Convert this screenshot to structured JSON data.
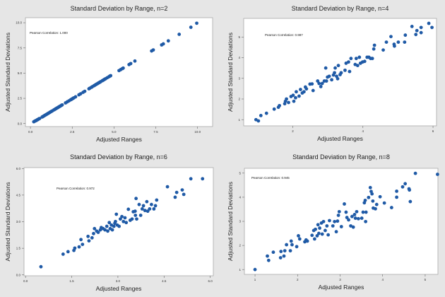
{
  "chart_data": [
    {
      "type": "scatter",
      "title": "Standard Deviation by Range, n=2",
      "xlabel": "Adjusted Ranges",
      "ylabel": "Adjusted Standard Deviations",
      "annotation": "Pearson Correlation: 1.000",
      "xlim": [
        -0.3,
        10.9
      ],
      "ylim": [
        -0.3,
        10.5
      ],
      "xticks": [
        0.0,
        2.5,
        5.0,
        7.5,
        10.0
      ],
      "xtick_labels": [
        "0.0",
        "2.5",
        "5.0",
        "7.5",
        "10.0"
      ],
      "yticks": [
        0.0,
        2.5,
        5.0,
        7.5,
        10.0
      ],
      "ytick_labels": [
        "0.0",
        "2.5",
        "5.0",
        "7.5",
        "10.0"
      ],
      "grid": false,
      "marker_color": "#1f5aa6",
      "points": [
        [
          0.2,
          0.18
        ],
        [
          0.25,
          0.22
        ],
        [
          0.3,
          0.28
        ],
        [
          0.35,
          0.3
        ],
        [
          0.4,
          0.37
        ],
        [
          0.45,
          0.4
        ],
        [
          0.5,
          0.47
        ],
        [
          0.55,
          0.5
        ],
        [
          0.7,
          0.65
        ],
        [
          0.75,
          0.7
        ],
        [
          0.8,
          0.75
        ],
        [
          0.85,
          0.8
        ],
        [
          0.9,
          0.85
        ],
        [
          0.95,
          0.9
        ],
        [
          1.0,
          0.95
        ],
        [
          1.05,
          1.0
        ],
        [
          1.1,
          1.05
        ],
        [
          1.15,
          1.1
        ],
        [
          1.2,
          1.15
        ],
        [
          1.25,
          1.2
        ],
        [
          1.3,
          1.25
        ],
        [
          1.4,
          1.35
        ],
        [
          1.45,
          1.4
        ],
        [
          1.5,
          1.45
        ],
        [
          1.55,
          1.5
        ],
        [
          1.6,
          1.55
        ],
        [
          1.65,
          1.6
        ],
        [
          1.7,
          1.65
        ],
        [
          1.75,
          1.7
        ],
        [
          1.8,
          1.75
        ],
        [
          1.85,
          1.8
        ],
        [
          1.9,
          1.85
        ],
        [
          2.1,
          2.05
        ],
        [
          2.2,
          2.15
        ],
        [
          2.3,
          2.25
        ],
        [
          2.4,
          2.35
        ],
        [
          2.45,
          2.4
        ],
        [
          2.5,
          2.45
        ],
        [
          2.55,
          2.5
        ],
        [
          2.6,
          2.55
        ],
        [
          2.7,
          2.65
        ],
        [
          2.9,
          2.85
        ],
        [
          3.0,
          2.95
        ],
        [
          3.15,
          3.1
        ],
        [
          3.25,
          3.2
        ],
        [
          3.5,
          3.45
        ],
        [
          3.55,
          3.5
        ],
        [
          3.65,
          3.6
        ],
        [
          3.7,
          3.65
        ],
        [
          3.8,
          3.75
        ],
        [
          3.85,
          3.8
        ],
        [
          3.9,
          3.85
        ],
        [
          3.95,
          3.9
        ],
        [
          4.0,
          3.95
        ],
        [
          4.05,
          4.0
        ],
        [
          4.1,
          4.05
        ],
        [
          4.15,
          4.1
        ],
        [
          4.2,
          4.15
        ],
        [
          4.3,
          4.25
        ],
        [
          4.35,
          4.3
        ],
        [
          4.4,
          4.35
        ],
        [
          4.45,
          4.4
        ],
        [
          4.5,
          4.45
        ],
        [
          4.6,
          4.55
        ],
        [
          4.7,
          4.65
        ],
        [
          4.75,
          4.7
        ],
        [
          4.8,
          4.75
        ],
        [
          5.3,
          5.25
        ],
        [
          5.4,
          5.35
        ],
        [
          5.5,
          5.45
        ],
        [
          5.55,
          5.5
        ],
        [
          5.9,
          5.85
        ],
        [
          6.0,
          5.95
        ],
        [
          6.25,
          6.2
        ],
        [
          7.25,
          7.2
        ],
        [
          7.35,
          7.3
        ],
        [
          7.85,
          7.8
        ],
        [
          7.95,
          7.9
        ],
        [
          8.25,
          8.2
        ],
        [
          8.9,
          8.85
        ],
        [
          9.6,
          9.55
        ],
        [
          9.95,
          9.95
        ]
      ]
    },
    {
      "type": "scatter",
      "title": "Standard Deviation by Range, n=4",
      "xlabel": "Adjusted Ranges",
      "ylabel": "Adjusted Standard Deviations",
      "annotation": "Pearson Correlation: 0.987",
      "xlim": [
        0.6,
        6.1
      ],
      "ylim": [
        0.7,
        5.9
      ],
      "xticks": [
        2,
        4,
        6
      ],
      "xtick_labels": [
        "2",
        "4",
        "6"
      ],
      "yticks": [
        1,
        2,
        3,
        4,
        5
      ],
      "ytick_labels": [
        "1",
        "2",
        "3",
        "4",
        "5"
      ],
      "grid": false,
      "marker_color": "#1f5aa6",
      "points": [
        [
          0.95,
          1.0
        ],
        [
          1.02,
          0.94
        ],
        [
          1.09,
          1.2
        ],
        [
          1.25,
          1.31
        ],
        [
          1.47,
          1.51
        ],
        [
          1.59,
          1.6
        ],
        [
          1.62,
          1.68
        ],
        [
          1.77,
          1.77
        ],
        [
          1.79,
          1.89
        ],
        [
          1.82,
          2.0
        ],
        [
          1.88,
          1.83
        ],
        [
          1.95,
          2.12
        ],
        [
          2.01,
          2.18
        ],
        [
          2.03,
          1.89
        ],
        [
          2.08,
          2.06
        ],
        [
          2.1,
          2.35
        ],
        [
          2.18,
          2.14
        ],
        [
          2.22,
          2.46
        ],
        [
          2.27,
          2.29
        ],
        [
          2.32,
          2.35
        ],
        [
          2.36,
          2.58
        ],
        [
          2.39,
          2.49
        ],
        [
          2.49,
          2.72
        ],
        [
          2.55,
          2.73
        ],
        [
          2.58,
          2.41
        ],
        [
          2.71,
          2.87
        ],
        [
          2.75,
          2.75
        ],
        [
          2.8,
          2.6
        ],
        [
          2.84,
          2.75
        ],
        [
          2.9,
          2.87
        ],
        [
          2.94,
          3.5
        ],
        [
          2.96,
          2.87
        ],
        [
          2.99,
          3.06
        ],
        [
          3.04,
          3.1
        ],
        [
          3.11,
          2.93
        ],
        [
          3.16,
          3.16
        ],
        [
          3.19,
          3.27
        ],
        [
          3.21,
          3.5
        ],
        [
          3.25,
          3.1
        ],
        [
          3.28,
          2.98
        ],
        [
          3.3,
          3.62
        ],
        [
          3.35,
          3.18
        ],
        [
          3.38,
          3.27
        ],
        [
          3.49,
          3.39
        ],
        [
          3.52,
          3.73
        ],
        [
          3.59,
          3.79
        ],
        [
          3.62,
          3.33
        ],
        [
          3.66,
          3.96
        ],
        [
          3.78,
          3.67
        ],
        [
          3.81,
          3.96
        ],
        [
          3.85,
          3.62
        ],
        [
          3.9,
          4.02
        ],
        [
          3.93,
          3.73
        ],
        [
          3.99,
          3.79
        ],
        [
          4.05,
          3.82
        ],
        [
          4.12,
          4.02
        ],
        [
          4.17,
          4.02
        ],
        [
          4.22,
          3.96
        ],
        [
          4.27,
          3.96
        ],
        [
          4.31,
          4.42
        ],
        [
          4.33,
          4.6
        ],
        [
          4.58,
          4.37
        ],
        [
          4.67,
          4.75
        ],
        [
          4.8,
          5.02
        ],
        [
          4.89,
          4.65
        ],
        [
          4.9,
          4.56
        ],
        [
          5.01,
          4.75
        ],
        [
          5.19,
          4.75
        ],
        [
          5.21,
          5.09
        ],
        [
          5.4,
          5.51
        ],
        [
          5.51,
          5.12
        ],
        [
          5.54,
          5.31
        ],
        [
          5.66,
          5.46
        ],
        [
          5.66,
          5.21
        ],
        [
          5.88,
          5.66
        ],
        [
          5.97,
          5.46
        ]
      ]
    },
    {
      "type": "scatter",
      "title": "Standard Deviation by Range, n=6",
      "xlabel": "Adjusted Ranges",
      "ylabel": "Adjusted Standard Deviations",
      "annotation": "Pearson Correlation: 0.972",
      "xlim": [
        -0.05,
        6.1
      ],
      "ylim": [
        -0.05,
        6.05
      ],
      "xticks": [
        0.0,
        1.5,
        3.0,
        4.5,
        6.0
      ],
      "xtick_labels": [
        "0.0",
        "1.5",
        "3.0",
        "4.5",
        "6.0"
      ],
      "yticks": [
        0.0,
        1.5,
        3.0,
        4.5,
        6.0
      ],
      "ytick_labels": [
        "0.0",
        "1.5",
        "3.0",
        "4.5",
        "6.0"
      ],
      "grid": false,
      "marker_color": "#1f5aa6",
      "points": [
        [
          0.5,
          0.46
        ],
        [
          1.22,
          1.17
        ],
        [
          1.38,
          1.31
        ],
        [
          1.57,
          1.38
        ],
        [
          1.6,
          1.51
        ],
        [
          1.74,
          1.58
        ],
        [
          1.8,
          1.99
        ],
        [
          1.85,
          1.72
        ],
        [
          2.03,
          2.17
        ],
        [
          2.06,
          1.92
        ],
        [
          2.16,
          2.09
        ],
        [
          2.21,
          2.33
        ],
        [
          2.24,
          2.61
        ],
        [
          2.31,
          2.47
        ],
        [
          2.36,
          2.4
        ],
        [
          2.43,
          2.54
        ],
        [
          2.46,
          2.67
        ],
        [
          2.52,
          2.61
        ],
        [
          2.58,
          2.54
        ],
        [
          2.64,
          2.74
        ],
        [
          2.67,
          2.47
        ],
        [
          2.72,
          2.95
        ],
        [
          2.75,
          2.61
        ],
        [
          2.79,
          2.81
        ],
        [
          2.82,
          2.54
        ],
        [
          2.87,
          2.74
        ],
        [
          2.9,
          2.91
        ],
        [
          2.92,
          3.01
        ],
        [
          2.95,
          3.42
        ],
        [
          2.98,
          2.81
        ],
        [
          3.04,
          2.74
        ],
        [
          3.08,
          3.15
        ],
        [
          3.13,
          3.29
        ],
        [
          3.18,
          3.01
        ],
        [
          3.23,
          3.22
        ],
        [
          3.27,
          2.95
        ],
        [
          3.34,
          3.7
        ],
        [
          3.4,
          3.08
        ],
        [
          3.46,
          3.15
        ],
        [
          3.5,
          3.56
        ],
        [
          3.56,
          3.59
        ],
        [
          3.57,
          3.36
        ],
        [
          3.59,
          4.31
        ],
        [
          3.61,
          3.15
        ],
        [
          3.69,
          3.97
        ],
        [
          3.74,
          3.36
        ],
        [
          3.79,
          3.72
        ],
        [
          3.83,
          3.9
        ],
        [
          3.88,
          3.63
        ],
        [
          3.94,
          4.13
        ],
        [
          3.97,
          3.59
        ],
        [
          4.03,
          3.72
        ],
        [
          4.09,
          3.97
        ],
        [
          4.17,
          3.72
        ],
        [
          4.22,
          3.9
        ],
        [
          4.26,
          4.22
        ],
        [
          4.61,
          4.97
        ],
        [
          4.86,
          4.38
        ],
        [
          4.91,
          4.65
        ],
        [
          5.09,
          4.79
        ],
        [
          5.14,
          4.54
        ],
        [
          5.37,
          5.42
        ],
        [
          5.75,
          5.42
        ]
      ]
    },
    {
      "type": "scatter",
      "title": "Standard Deviation by Range, n=8",
      "xlabel": "Adjusted Ranges",
      "ylabel": "Adjusted Standard Deviations",
      "annotation": "Pearson Correlation: 0.945",
      "xlim": [
        0.75,
        5.3
      ],
      "ylim": [
        0.8,
        5.2
      ],
      "xticks": [
        1,
        2,
        3,
        4,
        5
      ],
      "xtick_labels": [
        "1",
        "2",
        "3",
        "4",
        "5"
      ],
      "yticks": [
        1,
        2,
        3,
        4,
        5
      ],
      "ytick_labels": [
        "1",
        "2",
        "3",
        "4",
        "5"
      ],
      "grid": false,
      "marker_color": "#1f5aa6",
      "points": [
        [
          1.0,
          1.0
        ],
        [
          1.29,
          1.56
        ],
        [
          1.32,
          1.38
        ],
        [
          1.43,
          1.72
        ],
        [
          1.6,
          1.49
        ],
        [
          1.61,
          1.75
        ],
        [
          1.68,
          1.56
        ],
        [
          1.7,
          1.78
        ],
        [
          1.74,
          2.03
        ],
        [
          1.83,
          1.78
        ],
        [
          1.85,
          2.18
        ],
        [
          1.87,
          2.03
        ],
        [
          1.98,
          1.95
        ],
        [
          2.02,
          2.4
        ],
        [
          2.05,
          2.27
        ],
        [
          2.17,
          2.15
        ],
        [
          2.2,
          2.23
        ],
        [
          2.23,
          2.18
        ],
        [
          2.34,
          2.42
        ],
        [
          2.38,
          2.62
        ],
        [
          2.4,
          2.27
        ],
        [
          2.42,
          2.67
        ],
        [
          2.46,
          2.4
        ],
        [
          2.48,
          2.86
        ],
        [
          2.5,
          2.5
        ],
        [
          2.52,
          2.72
        ],
        [
          2.56,
          2.93
        ],
        [
          2.58,
          2.47
        ],
        [
          2.61,
          2.99
        ],
        [
          2.65,
          2.62
        ],
        [
          2.69,
          2.81
        ],
        [
          2.72,
          2.44
        ],
        [
          2.75,
          3.03
        ],
        [
          2.83,
          2.81
        ],
        [
          2.87,
          2.99
        ],
        [
          2.91,
          2.57
        ],
        [
          2.94,
          3.01
        ],
        [
          2.96,
          3.25
        ],
        [
          2.98,
          3.4
        ],
        [
          3.03,
          2.78
        ],
        [
          3.1,
          3.72
        ],
        [
          3.14,
          3.38
        ],
        [
          3.16,
          3.16
        ],
        [
          3.2,
          3.06
        ],
        [
          3.25,
          2.81
        ],
        [
          3.28,
          3.2
        ],
        [
          3.31,
          2.76
        ],
        [
          3.34,
          3.28
        ],
        [
          3.36,
          3.13
        ],
        [
          3.39,
          3.4
        ],
        [
          3.43,
          3.11
        ],
        [
          3.51,
          3.13
        ],
        [
          3.54,
          3.38
        ],
        [
          3.57,
          3.77
        ],
        [
          3.59,
          3.87
        ],
        [
          3.6,
          2.99
        ],
        [
          3.61,
          3.38
        ],
        [
          3.67,
          3.99
        ],
        [
          3.71,
          4.4
        ],
        [
          3.73,
          4.24
        ],
        [
          3.75,
          4.14
        ],
        [
          3.77,
          3.84
        ],
        [
          3.78,
          3.55
        ],
        [
          3.83,
          3.52
        ],
        [
          3.86,
          3.7
        ],
        [
          3.94,
          4.02
        ],
        [
          4.04,
          3.76
        ],
        [
          4.21,
          3.57
        ],
        [
          4.33,
          4.25
        ],
        [
          4.33,
          4.0
        ],
        [
          4.47,
          4.43
        ],
        [
          4.53,
          4.56
        ],
        [
          4.62,
          4.35
        ],
        [
          4.63,
          4.3
        ],
        [
          4.65,
          3.82
        ],
        [
          4.77,
          4.99
        ],
        [
          5.29,
          4.95
        ]
      ]
    }
  ]
}
